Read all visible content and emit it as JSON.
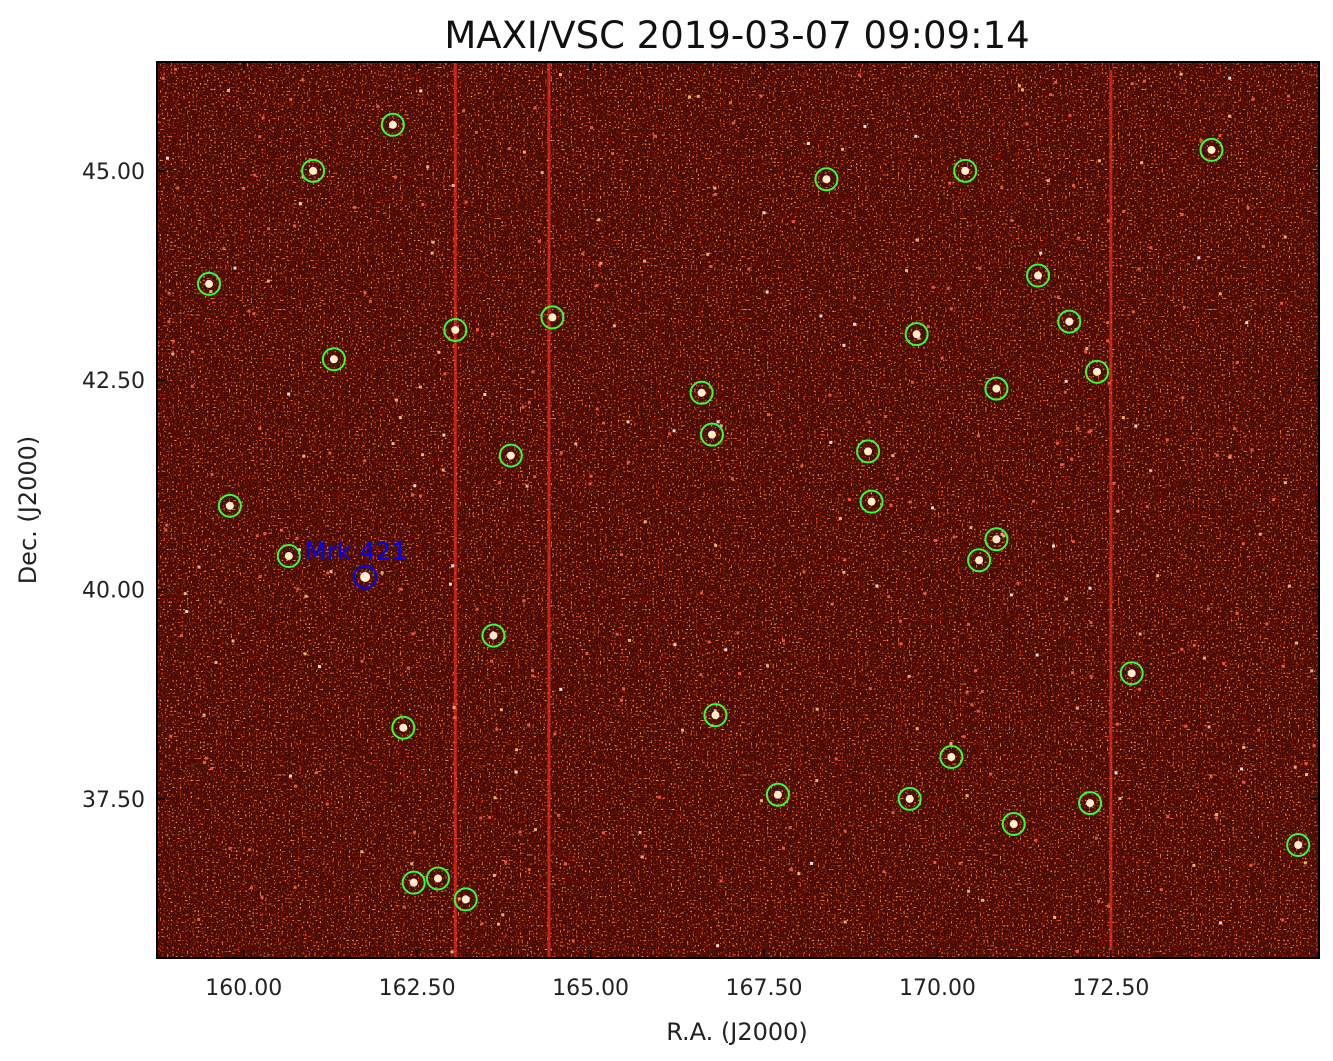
{
  "title": "MAXI/VSC 2019-03-07 09:09:14",
  "x_axis": {
    "label": "R.A. (J2000)",
    "range": [
      158.75,
      175.5
    ],
    "ticks": [
      {
        "value": 160.0,
        "label": "160.00"
      },
      {
        "value": 162.5,
        "label": "162.50"
      },
      {
        "value": 165.0,
        "label": "165.00"
      },
      {
        "value": 167.5,
        "label": "167.50"
      },
      {
        "value": 170.0,
        "label": "170.00"
      },
      {
        "value": 172.5,
        "label": "172.50"
      }
    ]
  },
  "y_axis": {
    "label": "Dec. (J2000)",
    "range": [
      35.6,
      46.3
    ],
    "ticks": [
      {
        "value": 45.0,
        "label": "45.00"
      },
      {
        "value": 42.5,
        "label": "42.50"
      },
      {
        "value": 40.0,
        "label": "40.00"
      },
      {
        "value": 37.5,
        "label": "37.50"
      }
    ]
  },
  "target": {
    "name": "Mrk 421",
    "ra": 161.75,
    "dec": 40.15,
    "color": "#0000ff"
  },
  "colors": {
    "background": "#a10000",
    "detection_circle": "#33ff33",
    "target_circle": "#0000ff",
    "streak": "#ff3322"
  },
  "streak_columns_ra": [
    163.05,
    164.4,
    172.5
  ],
  "detections": [
    {
      "ra": 162.15,
      "dec": 45.55
    },
    {
      "ra": 161.0,
      "dec": 45.0
    },
    {
      "ra": 159.5,
      "dec": 43.65
    },
    {
      "ra": 161.3,
      "dec": 42.75
    },
    {
      "ra": 163.05,
      "dec": 43.1
    },
    {
      "ra": 164.45,
      "dec": 43.25
    },
    {
      "ra": 159.8,
      "dec": 41.0
    },
    {
      "ra": 163.85,
      "dec": 41.6
    },
    {
      "ra": 160.65,
      "dec": 40.4
    },
    {
      "ra": 163.6,
      "dec": 39.45
    },
    {
      "ra": 162.3,
      "dec": 38.35
    },
    {
      "ra": 162.45,
      "dec": 36.5
    },
    {
      "ra": 162.8,
      "dec": 36.55
    },
    {
      "ra": 163.2,
      "dec": 36.3
    },
    {
      "ra": 166.6,
      "dec": 42.35
    },
    {
      "ra": 166.75,
      "dec": 41.85
    },
    {
      "ra": 166.8,
      "dec": 38.5
    },
    {
      "ra": 167.7,
      "dec": 37.55
    },
    {
      "ra": 168.4,
      "dec": 44.9
    },
    {
      "ra": 169.0,
      "dec": 41.65
    },
    {
      "ra": 169.05,
      "dec": 41.05
    },
    {
      "ra": 169.6,
      "dec": 37.5
    },
    {
      "ra": 169.7,
      "dec": 43.05
    },
    {
      "ra": 170.2,
      "dec": 38.0
    },
    {
      "ra": 170.4,
      "dec": 45.0
    },
    {
      "ra": 170.6,
      "dec": 40.35
    },
    {
      "ra": 170.85,
      "dec": 42.4
    },
    {
      "ra": 170.85,
      "dec": 40.6
    },
    {
      "ra": 171.45,
      "dec": 43.75
    },
    {
      "ra": 171.9,
      "dec": 43.2
    },
    {
      "ra": 172.3,
      "dec": 42.6
    },
    {
      "ra": 171.1,
      "dec": 37.2
    },
    {
      "ra": 172.2,
      "dec": 37.45
    },
    {
      "ra": 172.8,
      "dec": 39.0
    },
    {
      "ra": 173.95,
      "dec": 45.25
    },
    {
      "ra": 175.2,
      "dec": 36.95
    }
  ]
}
